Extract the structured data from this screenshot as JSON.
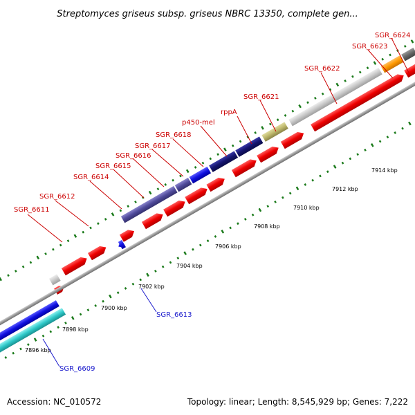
{
  "title": "Streptomyces griseus subsp. griseus NBRC 13350, complete gen...",
  "footer": {
    "accession": "Accession: NC_010572",
    "topology": "Topology: linear; Length: 8,545,929 bp; Genes: 7,222"
  },
  "colors": {
    "forward_gene": "#ee0000",
    "label_top": "#cc0000",
    "label_bottom": "#1a1acc",
    "tick": "#1a7a1a",
    "backbone": "#999999"
  },
  "ruler": [
    "7896 kbp",
    "7898 kbp",
    "7900 kbp",
    "7902 kbp",
    "7904 kbp",
    "7906 kbp",
    "7908 kbp",
    "7910 kbp",
    "7912 kbp",
    "7914 kbp"
  ],
  "top_labels": [
    "SGR_6611",
    "SGR_6612",
    "SGR_6614",
    "SGR_6615",
    "SGR_6616",
    "SGR_6617",
    "SGR_6618",
    "p450-mel",
    "rppA",
    "SGR_6621",
    "SGR_6622",
    "SGR_6623",
    "SGR_6624"
  ],
  "bottom_labels": [
    "SGR_6609",
    "SGR_6613"
  ]
}
